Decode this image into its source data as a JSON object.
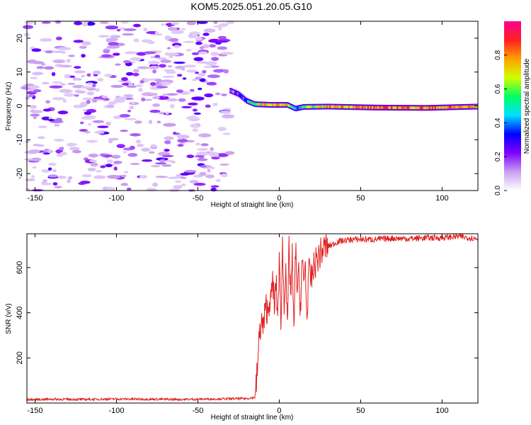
{
  "title": "KOM5.2025.051.20.05.G10",
  "chart_data": [
    {
      "type": "heatmap",
      "title": "KOM5.2025.051.20.05.G10",
      "xlabel": "Height of straight line (km)",
      "ylabel": "Frequency (Hz)",
      "xlim": [
        -155,
        122
      ],
      "ylim": [
        -25,
        25
      ],
      "x_ticks": [
        -150,
        -100,
        -50,
        0,
        50,
        100
      ],
      "y_ticks": [
        -20,
        -10,
        0,
        10,
        20
      ],
      "colorbar": {
        "label": "Normalized spectral amplitude",
        "range": [
          0,
          1
        ],
        "ticks": [
          0.0,
          0.2,
          0.4,
          0.6,
          0.8
        ],
        "colors": [
          "#ffffff",
          "#c8a0f0",
          "#8000ff",
          "#0000ff",
          "#00e0ff",
          "#00ff60",
          "#d0ff00",
          "#ffa000",
          "#ff2020",
          "#ff0090"
        ]
      },
      "noise_region_x": [
        -155,
        -30
      ],
      "noise_amplitude": [
        0.02,
        0.25
      ],
      "signal_ridge": [
        {
          "x": -30,
          "freq": 4.5,
          "amp": 0.18
        },
        {
          "x": -25,
          "freq": 3.5,
          "amp": 0.22
        },
        {
          "x": -20,
          "freq": 1.5,
          "amp": 0.35
        },
        {
          "x": -15,
          "freq": 0.5,
          "amp": 0.6
        },
        {
          "x": -5,
          "freq": 0.3,
          "amp": 0.75
        },
        {
          "x": 5,
          "freq": 0.3,
          "amp": 0.7
        },
        {
          "x": 10,
          "freq": -0.8,
          "amp": 0.35
        },
        {
          "x": 15,
          "freq": -0.3,
          "amp": 0.5
        },
        {
          "x": 30,
          "freq": -0.2,
          "amp": 0.75
        },
        {
          "x": 60,
          "freq": -0.5,
          "amp": 0.8
        },
        {
          "x": 90,
          "freq": -0.6,
          "amp": 0.8
        },
        {
          "x": 122,
          "freq": -0.2,
          "amp": 0.75
        }
      ]
    },
    {
      "type": "line",
      "xlabel": "Height of straight line (km)",
      "ylabel": "SNR (v/v)",
      "xlim": [
        -155,
        122
      ],
      "ylim": [
        0,
        750
      ],
      "x_ticks": [
        -150,
        -100,
        -50,
        0,
        50,
        100
      ],
      "y_ticks": [
        200,
        400,
        600
      ],
      "color": "#e02020",
      "series": [
        {
          "x": [
            -155,
            -140,
            -120,
            -100,
            -80,
            -60,
            -40,
            -20,
            -15,
            -14,
            -13,
            -12,
            -11,
            -10,
            -9,
            -8,
            -7,
            -6,
            -5,
            -4,
            -3,
            -2,
            -1,
            0,
            1,
            2,
            3,
            4,
            5,
            6,
            7,
            8,
            9,
            10,
            11,
            12,
            13,
            14,
            15,
            16,
            17,
            18,
            19,
            20,
            22,
            25,
            28,
            32,
            36,
            40,
            45,
            50,
            60,
            70,
            80,
            90,
            100,
            110,
            122
          ],
          "y": [
            15,
            17,
            16,
            18,
            17,
            16,
            18,
            20,
            25,
            90,
            200,
            320,
            360,
            330,
            380,
            430,
            400,
            470,
            440,
            560,
            410,
            540,
            380,
            620,
            360,
            700,
            420,
            650,
            300,
            680,
            480,
            640,
            290,
            700,
            500,
            560,
            420,
            640,
            520,
            620,
            350,
            600,
            540,
            560,
            620,
            660,
            690,
            700,
            715,
            720,
            725,
            725,
            725,
            730,
            728,
            732,
            732,
            738,
            728
          ]
        }
      ]
    }
  ]
}
